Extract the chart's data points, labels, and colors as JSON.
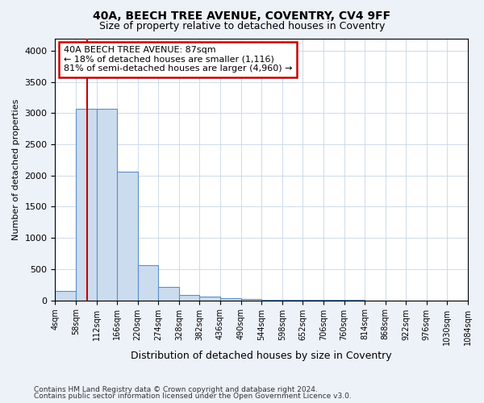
{
  "title1": "40A, BEECH TREE AVENUE, COVENTRY, CV4 9FF",
  "title2": "Size of property relative to detached houses in Coventry",
  "xlabel": "Distribution of detached houses by size in Coventry",
  "ylabel": "Number of detached properties",
  "bin_edges": [
    4,
    58,
    112,
    166,
    220,
    274,
    328,
    382,
    436,
    490,
    544,
    598,
    652,
    706,
    760,
    814,
    868,
    922,
    976,
    1030,
    1084
  ],
  "bar_heights": [
    150,
    3070,
    3070,
    2060,
    560,
    215,
    90,
    60,
    35,
    15,
    8,
    5,
    3,
    2,
    2,
    1,
    1,
    1,
    0,
    0
  ],
  "bar_facecolor": "#ccdcef",
  "bar_edgecolor": "#5b8fc9",
  "property_size": 87,
  "vline_color": "#cc0000",
  "annotation_line1": "40A BEECH TREE AVENUE: 87sqm",
  "annotation_line2": "← 18% of detached houses are smaller (1,116)",
  "annotation_line3": "81% of semi-detached houses are larger (4,960) →",
  "annotation_box_color": "#cc0000",
  "ylim": [
    0,
    4200
  ],
  "yticks": [
    0,
    500,
    1000,
    1500,
    2000,
    2500,
    3000,
    3500,
    4000
  ],
  "footer1": "Contains HM Land Registry data © Crown copyright and database right 2024.",
  "footer2": "Contains public sector information licensed under the Open Government Licence v3.0.",
  "bg_color": "#edf2f9",
  "plot_bg_color": "#ffffff",
  "grid_color": "#c8d4e8"
}
